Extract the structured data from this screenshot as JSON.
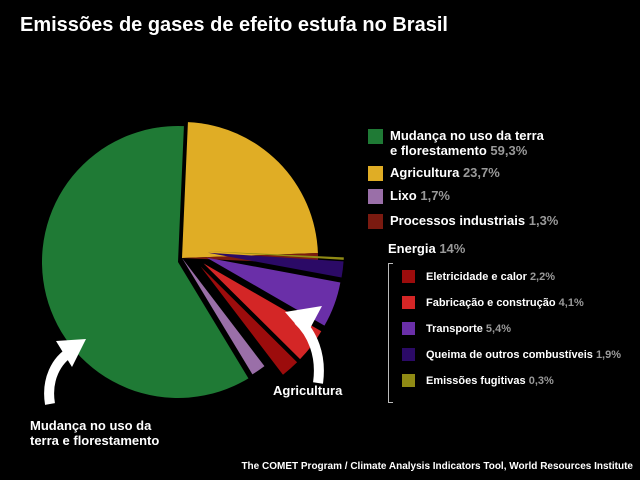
{
  "chart_data": {
    "type": "pie",
    "title": "Emissões de gases de efeito estufa no Brasil",
    "unit": "%",
    "slices": [
      {
        "label": "Mudança no uso da terra e florestamento",
        "value": 59.3,
        "color": "#1f7a35"
      },
      {
        "label": "Agricultura",
        "value": 23.7,
        "color": "#e0ad25"
      },
      {
        "label": "Processos industriais",
        "value": 1.3,
        "color": "#7a1a10"
      },
      {
        "label": "Emissões fugitivas",
        "value": 0.3,
        "color": "#8f8a14"
      },
      {
        "label": "Queima de outros combustíveis",
        "value": 1.9,
        "color": "#2b0a66"
      },
      {
        "label": "Transporte",
        "value": 5.4,
        "color": "#6a2fa8"
      },
      {
        "label": "Fabricação e construção",
        "value": 4.1,
        "color": "#d42626"
      },
      {
        "label": "Eletricidade e calor",
        "value": 2.2,
        "color": "#9c0c0c"
      },
      {
        "label": "Lixo",
        "value": 1.7,
        "color": "#9a6fa8"
      }
    ],
    "legend": [
      {
        "label_lines": [
          "Mudança no uso da terra",
          "e florestamento"
        ],
        "value": "59,3%",
        "color": "#1f7a35"
      },
      {
        "label_lines": [
          "Agricultura"
        ],
        "value": "23,7%",
        "color": "#e0ad25"
      },
      {
        "label_lines": [
          "Lixo"
        ],
        "value": "1,7%",
        "color": "#9a6fa8"
      },
      {
        "label_lines": [
          "Processos industriais"
        ],
        "value": "1,3%",
        "color": "#7a1a10"
      }
    ],
    "energy": {
      "label": "Energia",
      "value": "14%",
      "items": [
        {
          "label": "Eletricidade e calor",
          "value": "2,2%",
          "color": "#9c0c0c"
        },
        {
          "label": "Fabricação e construção",
          "value": "4,1%",
          "color": "#d42626"
        },
        {
          "label": "Transporte",
          "value": "5,4%",
          "color": "#6a2fa8"
        },
        {
          "label": "Queima de outros combustíveis",
          "value": "1,9%",
          "color": "#2b0a66"
        },
        {
          "label": "Emissões fugitivas",
          "value": "0,3%",
          "color": "#8f8a14"
        }
      ]
    },
    "callouts": {
      "agriculture": "Agricultura",
      "land_use_lines": [
        "Mudança no uso da",
        "terra e florestamento"
      ]
    },
    "source": "The COMET Program / Climate Analysis Indicators Tool, World Resources Institute"
  }
}
